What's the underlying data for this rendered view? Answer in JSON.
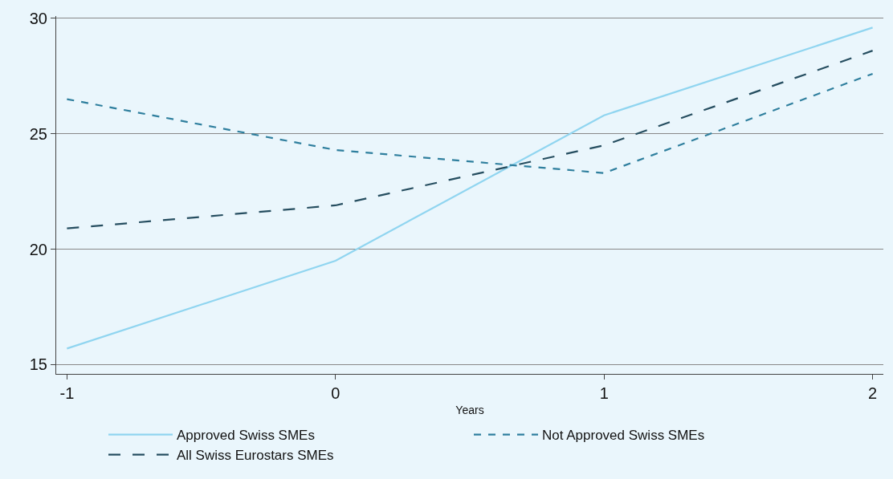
{
  "chart_data": {
    "type": "line",
    "xlabel": "Years",
    "x": [
      -1,
      0,
      1,
      2
    ],
    "series": [
      {
        "name": "Approved Swiss SMEs",
        "color": "#90d5f0",
        "line_style": "solid",
        "values": [
          15.7,
          19.5,
          25.8,
          29.6
        ]
      },
      {
        "name": "Not Approved Swiss SMEs",
        "color": "#2f7f9e",
        "line_style": "dashed",
        "values": [
          26.5,
          24.3,
          23.3,
          27.6
        ]
      },
      {
        "name": "All Swiss Eurostars SMEs",
        "color": "#264e60",
        "line_style": "longdash",
        "values": [
          20.9,
          21.9,
          24.5,
          28.6
        ]
      }
    ],
    "xlim": [
      -1.04,
      2.04
    ],
    "xticks": [
      -1,
      0,
      1,
      2
    ],
    "ylim": [
      14.6,
      30.1
    ],
    "yticks": [
      15,
      20,
      25,
      30
    ],
    "grid": "y",
    "legend": "bottom",
    "marker": "none"
  }
}
